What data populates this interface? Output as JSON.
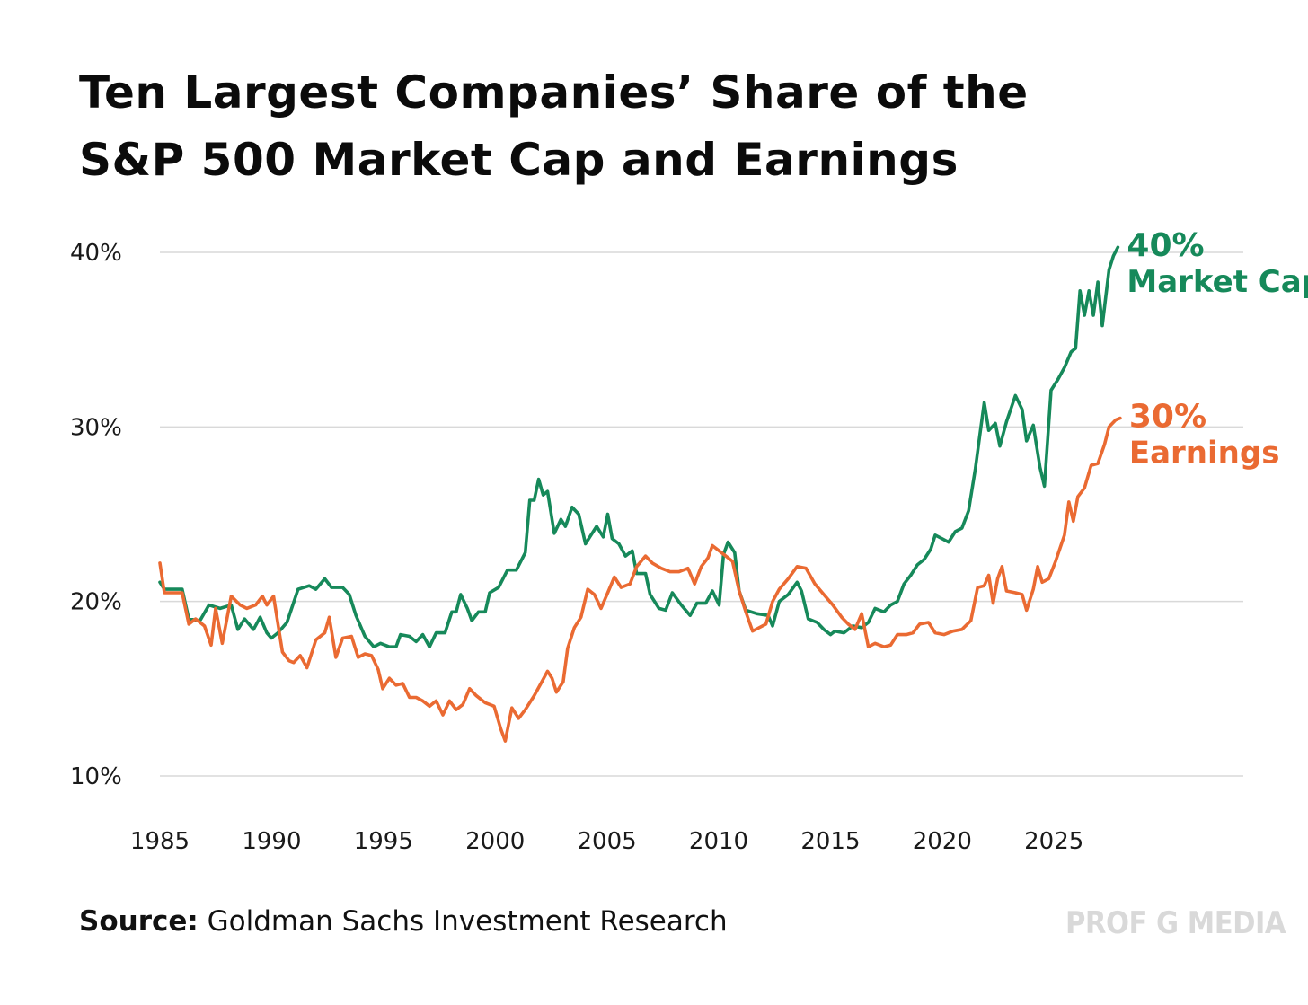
{
  "title": {
    "line1": "Ten Largest Companies’ Share of the",
    "line2": "S&P 500 Market Cap and Earnings"
  },
  "source": {
    "label": "Source:",
    "text": "Goldman Sachs Investment Research"
  },
  "brand": "PROF G MEDIA",
  "colors": {
    "market_cap": "#16895a",
    "earnings": "#ea6a32",
    "grid": "#d9d9d9"
  },
  "chart_data": {
    "type": "line",
    "title": "Ten Largest Companies’ Share of the S&P 500 Market Cap and Earnings",
    "xlabel": "",
    "ylabel": "",
    "xlim": [
      1985,
      2030
    ],
    "ylim": [
      10,
      40
    ],
    "grid": true,
    "x_ticks": [
      "1985",
      "1990",
      "1995",
      "2000",
      "2005",
      "2010",
      "2015",
      "2020",
      "2025"
    ],
    "y_ticks": [
      "40%",
      "30%",
      "20%",
      "10%"
    ],
    "series": [
      {
        "name": "Market Cap",
        "end_value": "40%",
        "end_label": "Market Cap",
        "points": [
          [
            1985.0,
            21.1
          ],
          [
            1985.2,
            20.7
          ],
          [
            1986.0,
            20.7
          ],
          [
            1986.3,
            19.0
          ],
          [
            1986.8,
            18.9
          ],
          [
            1987.2,
            19.8
          ],
          [
            1987.7,
            19.6
          ],
          [
            1988.2,
            19.8
          ],
          [
            1988.5,
            18.4
          ],
          [
            1988.8,
            19.0
          ],
          [
            1989.2,
            18.4
          ],
          [
            1989.5,
            19.1
          ],
          [
            1989.8,
            18.2
          ],
          [
            1990.0,
            17.9
          ],
          [
            1990.3,
            18.2
          ],
          [
            1990.7,
            18.8
          ],
          [
            1991.2,
            20.7
          ],
          [
            1991.7,
            20.9
          ],
          [
            1992.0,
            20.7
          ],
          [
            1992.4,
            21.3
          ],
          [
            1992.7,
            20.8
          ],
          [
            1993.2,
            20.8
          ],
          [
            1993.5,
            20.4
          ],
          [
            1993.8,
            19.2
          ],
          [
            1994.2,
            18.0
          ],
          [
            1994.6,
            17.4
          ],
          [
            1994.9,
            17.6
          ],
          [
            1995.3,
            17.4
          ],
          [
            1995.6,
            17.4
          ],
          [
            1995.8,
            18.1
          ],
          [
            1996.2,
            18.0
          ],
          [
            1996.5,
            17.7
          ],
          [
            1996.8,
            18.1
          ],
          [
            1997.1,
            17.4
          ],
          [
            1997.4,
            18.2
          ],
          [
            1997.8,
            18.2
          ],
          [
            1998.1,
            19.4
          ],
          [
            1998.3,
            19.4
          ],
          [
            1998.5,
            20.4
          ],
          [
            1998.8,
            19.6
          ],
          [
            1999.0,
            18.9
          ],
          [
            1999.3,
            19.4
          ],
          [
            1999.6,
            19.4
          ],
          [
            1999.8,
            20.5
          ],
          [
            2000.2,
            20.8
          ],
          [
            2000.6,
            21.8
          ],
          [
            2001.0,
            21.8
          ],
          [
            2001.4,
            22.8
          ],
          [
            2001.6,
            25.8
          ],
          [
            2001.8,
            25.8
          ],
          [
            2002.0,
            27.0
          ],
          [
            2002.2,
            26.1
          ],
          [
            2002.4,
            26.3
          ],
          [
            2002.7,
            23.9
          ],
          [
            2003.0,
            24.7
          ],
          [
            2003.2,
            24.3
          ],
          [
            2003.5,
            25.4
          ],
          [
            2003.8,
            25.0
          ],
          [
            2004.1,
            23.3
          ],
          [
            2004.3,
            23.7
          ],
          [
            2004.6,
            24.3
          ],
          [
            2004.9,
            23.7
          ],
          [
            2005.1,
            25.0
          ],
          [
            2005.3,
            23.6
          ],
          [
            2005.6,
            23.3
          ],
          [
            2005.9,
            22.6
          ],
          [
            2006.2,
            22.9
          ],
          [
            2006.4,
            21.6
          ],
          [
            2006.8,
            21.6
          ],
          [
            2007.0,
            20.4
          ],
          [
            2007.4,
            19.6
          ],
          [
            2007.7,
            19.5
          ],
          [
            2008.0,
            20.5
          ],
          [
            2008.4,
            19.8
          ],
          [
            2008.8,
            19.2
          ],
          [
            2009.1,
            19.9
          ],
          [
            2009.5,
            19.9
          ],
          [
            2009.8,
            20.6
          ],
          [
            2010.1,
            19.8
          ],
          [
            2010.3,
            22.7
          ],
          [
            2010.5,
            23.4
          ],
          [
            2010.8,
            22.8
          ],
          [
            2011.0,
            20.6
          ],
          [
            2011.3,
            19.5
          ],
          [
            2011.8,
            19.3
          ],
          [
            2012.3,
            19.2
          ],
          [
            2012.5,
            18.6
          ],
          [
            2012.8,
            20.0
          ],
          [
            2013.2,
            20.4
          ],
          [
            2013.6,
            21.1
          ],
          [
            2013.8,
            20.6
          ],
          [
            2014.1,
            19.0
          ],
          [
            2014.5,
            18.8
          ],
          [
            2014.8,
            18.4
          ],
          [
            2015.1,
            18.1
          ],
          [
            2015.3,
            18.3
          ],
          [
            2015.7,
            18.2
          ],
          [
            2016.1,
            18.6
          ],
          [
            2016.5,
            18.5
          ],
          [
            2016.8,
            18.8
          ],
          [
            2017.1,
            19.6
          ],
          [
            2017.5,
            19.4
          ],
          [
            2017.8,
            19.8
          ],
          [
            2018.1,
            20.0
          ],
          [
            2018.4,
            21.0
          ],
          [
            2018.7,
            21.5
          ],
          [
            2019.0,
            22.1
          ],
          [
            2019.3,
            22.4
          ],
          [
            2019.6,
            23.0
          ],
          [
            2019.8,
            23.8
          ],
          [
            2020.1,
            23.6
          ],
          [
            2020.4,
            23.4
          ],
          [
            2020.7,
            24.0
          ],
          [
            2021.0,
            24.2
          ],
          [
            2021.3,
            25.2
          ],
          [
            2021.6,
            27.6
          ],
          [
            2021.8,
            29.5
          ],
          [
            2022.0,
            31.4
          ],
          [
            2022.2,
            29.8
          ],
          [
            2022.5,
            30.2
          ],
          [
            2022.7,
            28.9
          ],
          [
            2023.0,
            30.3
          ],
          [
            2023.4,
            31.8
          ],
          [
            2023.7,
            31.0
          ],
          [
            2023.9,
            29.2
          ],
          [
            2024.2,
            30.1
          ],
          [
            2024.5,
            27.7
          ],
          [
            2024.7,
            26.6
          ],
          [
            2025.0,
            32.1
          ],
          [
            2025.3,
            32.7
          ],
          [
            2025.6,
            33.4
          ],
          [
            2025.9,
            34.3
          ],
          [
            2026.1,
            34.5
          ],
          [
            2026.3,
            37.8
          ],
          [
            2026.5,
            36.4
          ],
          [
            2026.7,
            37.8
          ],
          [
            2026.9,
            36.4
          ],
          [
            2027.1,
            38.3
          ],
          [
            2027.3,
            35.8
          ],
          [
            2027.6,
            39.0
          ],
          [
            2027.8,
            39.8
          ],
          [
            2028.0,
            40.3
          ]
        ]
      },
      {
        "name": "Earnings",
        "end_value": "30%",
        "end_label": "Earnings",
        "points": [
          [
            1985.0,
            22.2
          ],
          [
            1985.2,
            20.5
          ],
          [
            1986.0,
            20.5
          ],
          [
            1986.3,
            18.7
          ],
          [
            1986.6,
            19.0
          ],
          [
            1987.0,
            18.6
          ],
          [
            1987.3,
            17.5
          ],
          [
            1987.5,
            19.6
          ],
          [
            1987.8,
            17.6
          ],
          [
            1988.2,
            20.3
          ],
          [
            1988.6,
            19.8
          ],
          [
            1988.9,
            19.6
          ],
          [
            1989.3,
            19.8
          ],
          [
            1989.6,
            20.3
          ],
          [
            1989.8,
            19.8
          ],
          [
            1990.1,
            20.3
          ],
          [
            1990.5,
            17.1
          ],
          [
            1990.8,
            16.6
          ],
          [
            1991.0,
            16.5
          ],
          [
            1991.3,
            16.9
          ],
          [
            1991.6,
            16.2
          ],
          [
            1992.0,
            17.8
          ],
          [
            1992.4,
            18.2
          ],
          [
            1992.6,
            19.1
          ],
          [
            1992.9,
            16.8
          ],
          [
            1993.2,
            17.9
          ],
          [
            1993.6,
            18.0
          ],
          [
            1993.9,
            16.8
          ],
          [
            1994.2,
            17.0
          ],
          [
            1994.5,
            16.9
          ],
          [
            1994.8,
            16.1
          ],
          [
            1995.0,
            15.0
          ],
          [
            1995.3,
            15.6
          ],
          [
            1995.6,
            15.2
          ],
          [
            1995.9,
            15.3
          ],
          [
            1996.2,
            14.5
          ],
          [
            1996.5,
            14.5
          ],
          [
            1996.8,
            14.3
          ],
          [
            1997.1,
            14.0
          ],
          [
            1997.4,
            14.3
          ],
          [
            1997.7,
            13.5
          ],
          [
            1998.0,
            14.3
          ],
          [
            1998.3,
            13.8
          ],
          [
            1998.6,
            14.1
          ],
          [
            1998.9,
            15.0
          ],
          [
            1999.2,
            14.6
          ],
          [
            1999.6,
            14.2
          ],
          [
            2000.0,
            14.0
          ],
          [
            2000.3,
            12.7
          ],
          [
            2000.5,
            12.0
          ],
          [
            2000.8,
            13.9
          ],
          [
            2001.1,
            13.3
          ],
          [
            2001.4,
            13.8
          ],
          [
            2001.8,
            14.6
          ],
          [
            2002.1,
            15.3
          ],
          [
            2002.4,
            16.0
          ],
          [
            2002.6,
            15.6
          ],
          [
            2002.8,
            14.8
          ],
          [
            2003.1,
            15.4
          ],
          [
            2003.3,
            17.3
          ],
          [
            2003.6,
            18.5
          ],
          [
            2003.9,
            19.1
          ],
          [
            2004.2,
            20.7
          ],
          [
            2004.5,
            20.4
          ],
          [
            2004.8,
            19.6
          ],
          [
            2005.1,
            20.5
          ],
          [
            2005.4,
            21.4
          ],
          [
            2005.7,
            20.8
          ],
          [
            2006.1,
            21.0
          ],
          [
            2006.4,
            22.0
          ],
          [
            2006.8,
            22.6
          ],
          [
            2007.1,
            22.2
          ],
          [
            2007.5,
            21.9
          ],
          [
            2007.9,
            21.7
          ],
          [
            2008.3,
            21.7
          ],
          [
            2008.7,
            21.9
          ],
          [
            2009.0,
            21.0
          ],
          [
            2009.3,
            22.0
          ],
          [
            2009.6,
            22.5
          ],
          [
            2009.8,
            23.2
          ],
          [
            2010.1,
            22.9
          ],
          [
            2010.4,
            22.6
          ],
          [
            2010.7,
            22.3
          ],
          [
            2011.0,
            20.6
          ],
          [
            2011.3,
            19.4
          ],
          [
            2011.6,
            18.3
          ],
          [
            2011.9,
            18.5
          ],
          [
            2012.2,
            18.7
          ],
          [
            2012.5,
            20.0
          ],
          [
            2012.8,
            20.7
          ],
          [
            2013.2,
            21.3
          ],
          [
            2013.6,
            22.0
          ],
          [
            2014.0,
            21.9
          ],
          [
            2014.4,
            21.0
          ],
          [
            2014.8,
            20.4
          ],
          [
            2015.2,
            19.8
          ],
          [
            2015.6,
            19.1
          ],
          [
            2015.9,
            18.7
          ],
          [
            2016.2,
            18.4
          ],
          [
            2016.5,
            19.3
          ],
          [
            2016.8,
            17.4
          ],
          [
            2017.1,
            17.6
          ],
          [
            2017.5,
            17.4
          ],
          [
            2017.8,
            17.5
          ],
          [
            2018.1,
            18.1
          ],
          [
            2018.5,
            18.1
          ],
          [
            2018.8,
            18.2
          ],
          [
            2019.1,
            18.7
          ],
          [
            2019.5,
            18.8
          ],
          [
            2019.8,
            18.2
          ],
          [
            2020.2,
            18.1
          ],
          [
            2020.6,
            18.3
          ],
          [
            2021.0,
            18.4
          ],
          [
            2021.4,
            18.9
          ],
          [
            2021.7,
            20.8
          ],
          [
            2022.0,
            20.9
          ],
          [
            2022.2,
            21.5
          ],
          [
            2022.4,
            19.9
          ],
          [
            2022.6,
            21.3
          ],
          [
            2022.8,
            22.0
          ],
          [
            2023.0,
            20.6
          ],
          [
            2023.4,
            20.5
          ],
          [
            2023.7,
            20.4
          ],
          [
            2023.9,
            19.5
          ],
          [
            2024.2,
            20.7
          ],
          [
            2024.4,
            22.0
          ],
          [
            2024.6,
            21.1
          ],
          [
            2024.9,
            21.3
          ],
          [
            2025.2,
            22.3
          ],
          [
            2025.6,
            23.8
          ],
          [
            2025.8,
            25.7
          ],
          [
            2026.0,
            24.6
          ],
          [
            2026.2,
            26.0
          ],
          [
            2026.5,
            26.5
          ],
          [
            2026.8,
            27.8
          ],
          [
            2027.1,
            27.9
          ],
          [
            2027.4,
            29.0
          ],
          [
            2027.6,
            30.0
          ],
          [
            2027.9,
            30.4
          ],
          [
            2028.1,
            30.5
          ]
        ]
      }
    ]
  }
}
